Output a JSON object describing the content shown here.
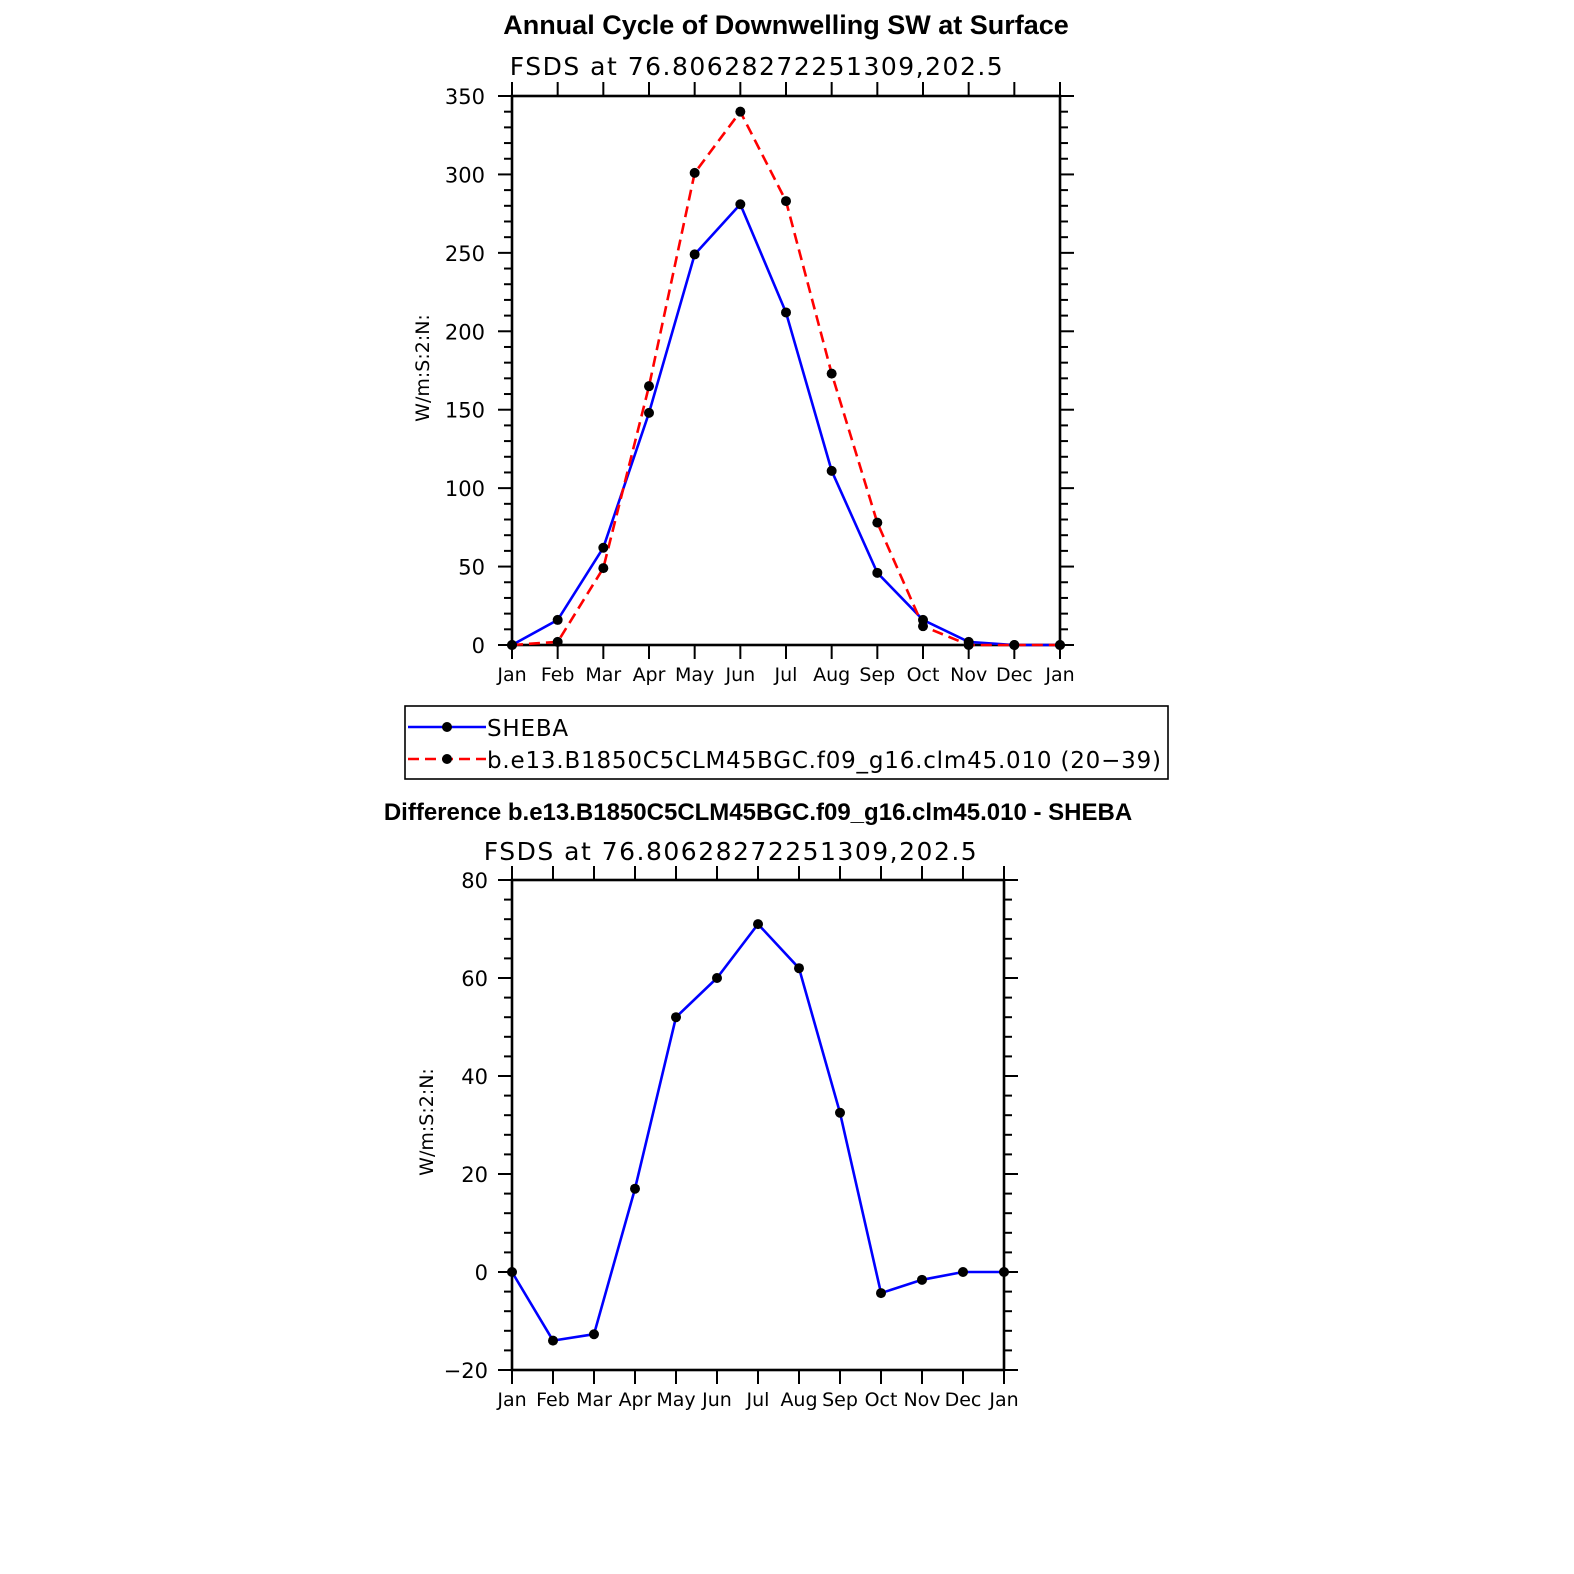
{
  "colors": {
    "sheba": "#0000ff",
    "model": "#ff0000",
    "marker": "#000000",
    "axis": "#000000",
    "diff": "#0000ff"
  },
  "chart_data": [
    {
      "type": "line",
      "title": "Annual Cycle of Downwelling SW at Surface",
      "subtitle": "FSDS at 76.80628272251309,202.5",
      "xlabel": "",
      "ylabel": "W/m:S:2:N:",
      "categories": [
        "Jan",
        "Feb",
        "Mar",
        "Apr",
        "May",
        "Jun",
        "Jul",
        "Aug",
        "Sep",
        "Oct",
        "Nov",
        "Dec",
        "Jan"
      ],
      "yticks": [
        "0",
        "50",
        "100",
        "150",
        "200",
        "250",
        "300",
        "350"
      ],
      "ylim": [
        0,
        350
      ],
      "ystep": 50,
      "yminor": 10,
      "series": [
        {
          "name": "SHEBA",
          "style": "solid",
          "values": [
            0,
            16,
            62,
            148,
            249,
            281,
            212,
            111,
            46,
            16,
            2,
            0,
            0
          ]
        },
        {
          "name": "b.e13.B1850C5CLM45BGC.f09_g16.clm45.010 (20−39)",
          "style": "dashed",
          "values": [
            0,
            2,
            49,
            165,
            301,
            340,
            283,
            173,
            78,
            12,
            0,
            0,
            0
          ]
        }
      ],
      "legend": "below"
    },
    {
      "type": "line",
      "title": "Difference b.e13.B1850C5CLM45BGC.f09_g16.clm45.010 - SHEBA",
      "subtitle": "FSDS at 76.80628272251309,202.5",
      "xlabel": "",
      "ylabel": "W/m:S:2:N:",
      "categories": [
        "Jan",
        "Feb",
        "Mar",
        "Apr",
        "May",
        "Jun",
        "Jul",
        "Aug",
        "Sep",
        "Oct",
        "Nov",
        "Dec",
        "Jan"
      ],
      "yticks": [
        "−20",
        "0",
        "20",
        "40",
        "60",
        "80"
      ],
      "ylim": [
        -20,
        80
      ],
      "ystep": 20,
      "yminor": 4,
      "series": [
        {
          "name": "Difference",
          "style": "solid",
          "values": [
            0,
            -14,
            -12.7,
            17,
            52,
            60,
            71,
            62,
            32.5,
            -4.3,
            -1.6,
            0,
            0
          ]
        }
      ]
    }
  ]
}
